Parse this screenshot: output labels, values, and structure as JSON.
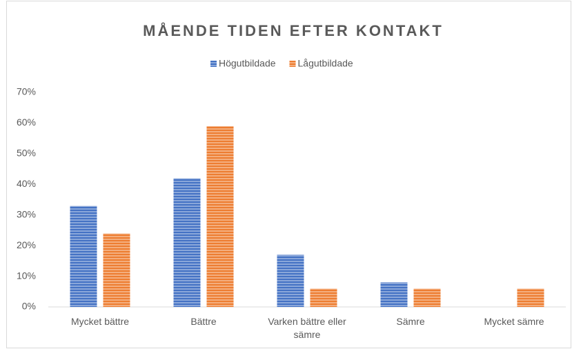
{
  "chart_data": {
    "type": "bar",
    "title": "MÅENDE TIDEN EFTER KONTAKT",
    "categories": [
      "Mycket bättre",
      "Bättre",
      "Varken bättre eller sämre",
      "Sämre",
      "Mycket sämre"
    ],
    "series": [
      {
        "name": "Högutbildade",
        "color": "#4472c4",
        "values": [
          33,
          42,
          17,
          8,
          0
        ]
      },
      {
        "name": "Lågutbildade",
        "color": "#ed7d31",
        "values": [
          24,
          59,
          6,
          6,
          6
        ]
      }
    ],
    "ylim": [
      0,
      70
    ],
    "yticks": [
      {
        "value": 0,
        "label": "0%"
      },
      {
        "value": 10,
        "label": "10%"
      },
      {
        "value": 20,
        "label": "20%"
      },
      {
        "value": 30,
        "label": "30%"
      },
      {
        "value": 40,
        "label": "40%"
      },
      {
        "value": 50,
        "label": "50%"
      },
      {
        "value": 60,
        "label": "60%"
      },
      {
        "value": 70,
        "label": "70%"
      }
    ],
    "grid": false,
    "legend": "top"
  }
}
